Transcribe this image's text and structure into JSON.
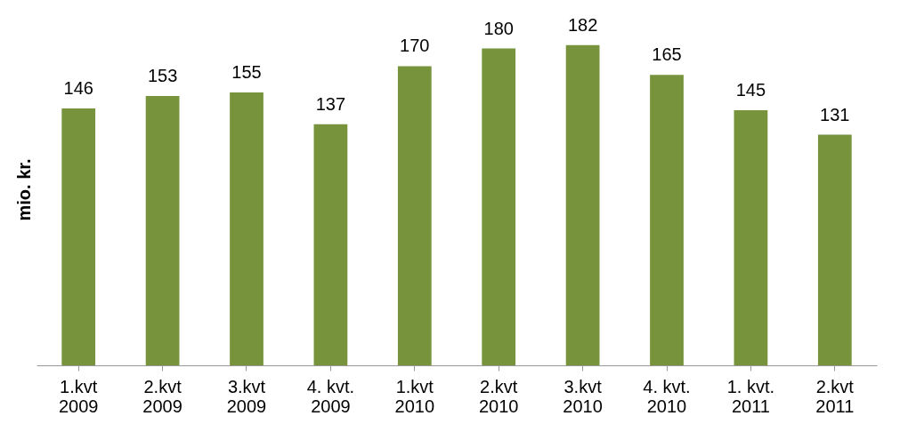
{
  "chart_data": {
    "type": "bar",
    "ylabel": "mio. kr.",
    "categories": [
      "1.kvt\n2009",
      "2.kvt\n2009",
      "3.kvt\n2009",
      "4. kvt.\n2009",
      "1.kvt\n2010",
      "2.kvt\n2010",
      "3.kvt\n2010",
      "4. kvt.\n2010",
      "1. kvt.\n2011",
      "2.kvt\n2011"
    ],
    "values": [
      146,
      153,
      155,
      137,
      170,
      180,
      182,
      165,
      145,
      131
    ],
    "color": "#77933c",
    "data_labels": true
  }
}
